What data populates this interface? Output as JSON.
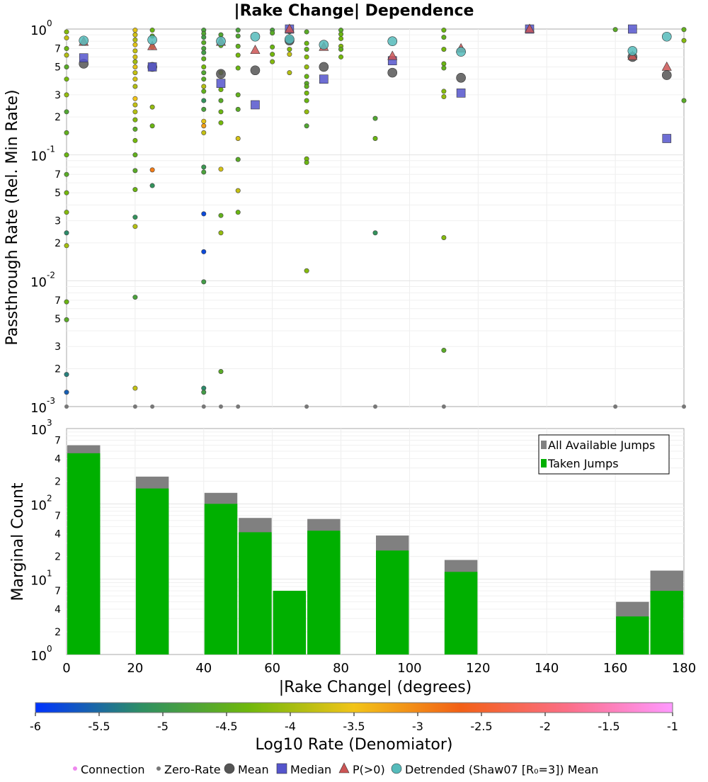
{
  "chart_data": [
    {
      "type": "scatter",
      "title": "|Rake Change| Dependence",
      "xlabel": "|Rake Change| (degrees)",
      "ylabel": "Passthrough Rate (Rel. Min Rate)",
      "xlim": [
        0,
        180
      ],
      "ylim": [
        0.001,
        1
      ],
      "y_scale": "log",
      "grid": true,
      "y_major_ticks": [
        {
          "base": "10",
          "exp": "0"
        },
        {
          "base": "10",
          "exp": "-1"
        },
        {
          "base": "10",
          "exp": "-2"
        },
        {
          "base": "10",
          "exp": "-3"
        }
      ],
      "y_minor_ticks": [
        "7",
        "5",
        "3",
        "2"
      ],
      "series": [
        {
          "name": "Mean",
          "color": "#555555",
          "marker": "circle",
          "points": [
            [
              5,
              0.53
            ],
            [
              25,
              0.5
            ],
            [
              45,
              0.44
            ],
            [
              55,
              0.47
            ],
            [
              65,
              0.81
            ],
            [
              75,
              0.5
            ],
            [
              95,
              0.45
            ],
            [
              115,
              0.41
            ],
            [
              165,
              0.6
            ],
            [
              175,
              0.43
            ]
          ]
        },
        {
          "name": "Median",
          "color": "#5555cc",
          "marker": "square",
          "points": [
            [
              5,
              0.59
            ],
            [
              25,
              0.5
            ],
            [
              45,
              0.37
            ],
            [
              55,
              0.25
            ],
            [
              65,
              1.0
            ],
            [
              75,
              0.4
            ],
            [
              95,
              0.56
            ],
            [
              115,
              0.31
            ],
            [
              135,
              1.0
            ],
            [
              165,
              1.0
            ],
            [
              175,
              0.135
            ]
          ]
        },
        {
          "name": "P(>0)",
          "color": "#cc5555",
          "marker": "triangle",
          "points": [
            [
              5,
              0.79
            ],
            [
              25,
              0.73
            ],
            [
              45,
              0.79
            ],
            [
              55,
              0.68
            ],
            [
              65,
              1.0
            ],
            [
              75,
              0.72
            ],
            [
              95,
              0.61
            ],
            [
              115,
              0.7
            ],
            [
              135,
              1.0
            ],
            [
              165,
              0.61
            ],
            [
              175,
              0.5
            ]
          ]
        },
        {
          "name": "Detrended (Shaw07 [R₀=3]) Mean",
          "color": "#55bbbb",
          "marker": "circle",
          "points": [
            [
              5,
              0.81
            ],
            [
              25,
              0.82
            ],
            [
              45,
              0.8
            ],
            [
              55,
              0.87
            ],
            [
              65,
              0.83
            ],
            [
              75,
              0.75
            ],
            [
              95,
              0.8
            ],
            [
              115,
              0.66
            ],
            [
              165,
              0.67
            ],
            [
              175,
              0.87
            ]
          ]
        }
      ],
      "connections": {
        "name": "Connection",
        "points": [
          [
            0,
            0.95,
            -4.2
          ],
          [
            0,
            0.85,
            -3.8
          ],
          [
            0,
            0.7,
            -4.4
          ],
          [
            0,
            0.62,
            -3.9
          ],
          [
            0,
            0.5,
            -4.6
          ],
          [
            0,
            0.4,
            -4.3
          ],
          [
            0,
            0.3,
            -4.1
          ],
          [
            0,
            0.22,
            -4.7
          ],
          [
            0,
            0.15,
            -4.5
          ],
          [
            0,
            0.1,
            -4.4
          ],
          [
            0,
            0.07,
            -4.6
          ],
          [
            0,
            0.05,
            -4.3
          ],
          [
            0,
            0.035,
            -4.2
          ],
          [
            0,
            0.024,
            -5.2
          ],
          [
            0,
            0.019,
            -4.0
          ],
          [
            0,
            0.0068,
            -4.4
          ],
          [
            0,
            0.0049,
            -4.6
          ],
          [
            0,
            0.0018,
            -5.3
          ],
          [
            0,
            0.0013,
            -5.6
          ],
          [
            20,
            0.98,
            -3.6
          ],
          [
            20,
            0.9,
            -3.7
          ],
          [
            20,
            0.82,
            -3.9
          ],
          [
            20,
            0.75,
            -3.6
          ],
          [
            20,
            0.67,
            -3.8
          ],
          [
            20,
            0.6,
            -3.7
          ],
          [
            20,
            0.55,
            -4.0
          ],
          [
            20,
            0.5,
            -3.6
          ],
          [
            20,
            0.45,
            -3.8
          ],
          [
            20,
            0.4,
            -3.7
          ],
          [
            20,
            0.35,
            -3.9
          ],
          [
            20,
            0.28,
            -3.5
          ],
          [
            20,
            0.25,
            -3.8
          ],
          [
            20,
            0.22,
            -3.9
          ],
          [
            20,
            0.19,
            -4.2
          ],
          [
            20,
            0.16,
            -4.6
          ],
          [
            20,
            0.13,
            -4.3
          ],
          [
            20,
            0.1,
            -4.5
          ],
          [
            20,
            0.075,
            -4.6
          ],
          [
            20,
            0.053,
            -4.4
          ],
          [
            20,
            0.032,
            -5.1
          ],
          [
            20,
            0.027,
            -3.9
          ],
          [
            20,
            0.0074,
            -4.8
          ],
          [
            20,
            0.0014,
            -3.8
          ],
          [
            25,
            0.98,
            -4.4
          ],
          [
            25,
            0.88,
            -4.5
          ],
          [
            25,
            0.72,
            -4.3
          ],
          [
            25,
            0.24,
            -4.1
          ],
          [
            25,
            0.17,
            -4.4
          ],
          [
            25,
            0.076,
            -2.9
          ],
          [
            25,
            0.057,
            -5.1
          ],
          [
            40,
            0.98,
            -4.8
          ],
          [
            40,
            0.92,
            -4.7
          ],
          [
            40,
            0.86,
            -4.9
          ],
          [
            40,
            0.78,
            -4.6
          ],
          [
            40,
            0.7,
            -4.8
          ],
          [
            40,
            0.65,
            -4.9
          ],
          [
            40,
            0.58,
            -4.5
          ],
          [
            40,
            0.5,
            -4.3
          ],
          [
            40,
            0.45,
            -4.7
          ],
          [
            40,
            0.4,
            -4.6
          ],
          [
            40,
            0.35,
            -3.9
          ],
          [
            40,
            0.32,
            -4.5
          ],
          [
            40,
            0.27,
            -5.1
          ],
          [
            40,
            0.23,
            -4.8
          ],
          [
            40,
            0.185,
            -3.6
          ],
          [
            40,
            0.17,
            -3.2
          ],
          [
            40,
            0.15,
            -3.8
          ],
          [
            40,
            0.08,
            -5.0
          ],
          [
            40,
            0.073,
            -4.8
          ],
          [
            40,
            0.034,
            -5.8
          ],
          [
            40,
            0.017,
            -5.8
          ],
          [
            40,
            0.0098,
            -4.9
          ],
          [
            40,
            0.0014,
            -5.2
          ],
          [
            40,
            0.0013,
            -4.9
          ],
          [
            45,
            0.9,
            -4.7
          ],
          [
            45,
            0.74,
            -4.5
          ],
          [
            45,
            0.45,
            -4.2
          ],
          [
            45,
            0.33,
            -4.3
          ],
          [
            45,
            0.27,
            -4.6
          ],
          [
            45,
            0.22,
            -4.4
          ],
          [
            45,
            0.18,
            -4.3
          ],
          [
            45,
            0.077,
            -3.7
          ],
          [
            45,
            0.033,
            -4.5
          ],
          [
            45,
            0.024,
            -4.1
          ],
          [
            45,
            0.0019,
            -4.6
          ],
          [
            50,
            0.98,
            -4.8
          ],
          [
            50,
            0.88,
            -4.7
          ],
          [
            50,
            0.73,
            -4.5
          ],
          [
            50,
            0.62,
            -4.3
          ],
          [
            50,
            0.49,
            -4.4
          ],
          [
            50,
            0.3,
            -4.5
          ],
          [
            50,
            0.23,
            -4.6
          ],
          [
            50,
            0.135,
            -3.7
          ],
          [
            50,
            0.092,
            -4.6
          ],
          [
            50,
            0.052,
            -3.8
          ],
          [
            50,
            0.035,
            -4.4
          ],
          [
            60,
            0.98,
            -4.8
          ],
          [
            60,
            0.93,
            -4.6
          ],
          [
            60,
            0.72,
            -4.4
          ],
          [
            60,
            0.63,
            -4.3
          ],
          [
            60,
            0.55,
            -4.2
          ],
          [
            65,
            0.95,
            -4.5
          ],
          [
            65,
            0.69,
            -4.2
          ],
          [
            65,
            0.63,
            -3.8
          ],
          [
            65,
            0.45,
            -3.9
          ],
          [
            70,
            0.95,
            -4.6
          ],
          [
            70,
            0.77,
            -4.4
          ],
          [
            70,
            0.69,
            -4.5
          ],
          [
            70,
            0.6,
            -4.2
          ],
          [
            70,
            0.5,
            -4.1
          ],
          [
            70,
            0.42,
            -4.4
          ],
          [
            70,
            0.37,
            -4.6
          ],
          [
            70,
            0.35,
            -4.5
          ],
          [
            70,
            0.31,
            -4.3
          ],
          [
            70,
            0.27,
            -4.4
          ],
          [
            70,
            0.22,
            -4.1
          ],
          [
            70,
            0.17,
            -4.7
          ],
          [
            70,
            0.093,
            -4.3
          ],
          [
            70,
            0.087,
            -4.4
          ],
          [
            70,
            0.012,
            -4.2
          ],
          [
            80,
            0.98,
            -4.6
          ],
          [
            80,
            0.91,
            -4.4
          ],
          [
            80,
            0.84,
            -4.3
          ],
          [
            80,
            0.73,
            -4.2
          ],
          [
            80,
            0.69,
            -4.5
          ],
          [
            80,
            0.6,
            -4.3
          ],
          [
            90,
            0.195,
            -4.7
          ],
          [
            90,
            0.135,
            -4.4
          ],
          [
            90,
            0.024,
            -5.1
          ],
          [
            110,
            0.98,
            -4.4
          ],
          [
            110,
            0.86,
            -4.5
          ],
          [
            110,
            0.69,
            -4.3
          ],
          [
            110,
            0.53,
            -4.4
          ],
          [
            110,
            0.49,
            -4.5
          ],
          [
            110,
            0.32,
            -4.2
          ],
          [
            110,
            0.29,
            -4.1
          ],
          [
            110,
            0.022,
            -4.2
          ],
          [
            110,
            0.0028,
            -4.6
          ],
          [
            160,
            0.99,
            -4.6
          ],
          [
            180,
            0.99,
            -4.5
          ],
          [
            180,
            0.81,
            -4.2
          ],
          [
            180,
            0.27,
            -4.6
          ]
        ]
      },
      "zero_rate": {
        "name": "Zero-Rate",
        "x": [
          0,
          20,
          25,
          40,
          45,
          50,
          70,
          90,
          110,
          160,
          180
        ]
      }
    },
    {
      "type": "bar",
      "xlabel": "|Rake Change| (degrees)",
      "ylabel": "Marginal Count",
      "xlim": [
        0,
        180
      ],
      "ylim": [
        1,
        1000
      ],
      "y_scale": "log",
      "grid": true,
      "x_ticks": [
        "0",
        "20",
        "40",
        "60",
        "80",
        "100",
        "120",
        "140",
        "160",
        "180"
      ],
      "y_major_ticks": [
        {
          "base": "10",
          "exp": "3"
        },
        {
          "base": "10",
          "exp": "2"
        },
        {
          "base": "10",
          "exp": "1"
        },
        {
          "base": "10",
          "exp": "0"
        }
      ],
      "y_minor_ticks": [
        "7",
        "4",
        "2"
      ],
      "bin_width": 10,
      "bin_starts": [
        0,
        20,
        40,
        50,
        60,
        70,
        90,
        110,
        160,
        170
      ],
      "series": [
        {
          "name": "All Available Jumps",
          "color": "#808080",
          "values": [
            600,
            230,
            140,
            65,
            7,
            63,
            38,
            18,
            5,
            13
          ]
        },
        {
          "name": "Taken Jumps",
          "color": "#00b000",
          "values": [
            470,
            160,
            100,
            42,
            7,
            44,
            24,
            12.5,
            3.2,
            7
          ]
        }
      ],
      "legend_position": "top-right"
    }
  ],
  "colorbar": {
    "label": "Log10 Rate (Denomiator)",
    "range": [
      -6,
      -1
    ],
    "ticks": [
      "-6",
      "-5.5",
      "-5",
      "-4.5",
      "-4",
      "-3.5",
      "-3",
      "-2.5",
      "-2",
      "-1.5",
      "-1"
    ],
    "stops": [
      "#0033ff",
      "#2e8f63",
      "#6fb80b",
      "#f2c418",
      "#f26016",
      "#fb6e86",
      "#ff99ff"
    ]
  },
  "legend": {
    "items": [
      {
        "label": "Connection",
        "icon": "small-pink-dot",
        "color": "#ee88ee"
      },
      {
        "label": "Zero-Rate",
        "icon": "small-gray-dot",
        "color": "#777777"
      },
      {
        "label": "Mean",
        "icon": "dark-circle",
        "color": "#555555"
      },
      {
        "label": "Median",
        "icon": "blue-square",
        "color": "#5555cc"
      },
      {
        "label": "P(>0)",
        "icon": "red-triangle",
        "color": "#cc5555"
      },
      {
        "label": "Detrended (Shaw07 [R₀=3]) Mean",
        "icon": "teal-circle",
        "color": "#55bbbb"
      }
    ]
  }
}
